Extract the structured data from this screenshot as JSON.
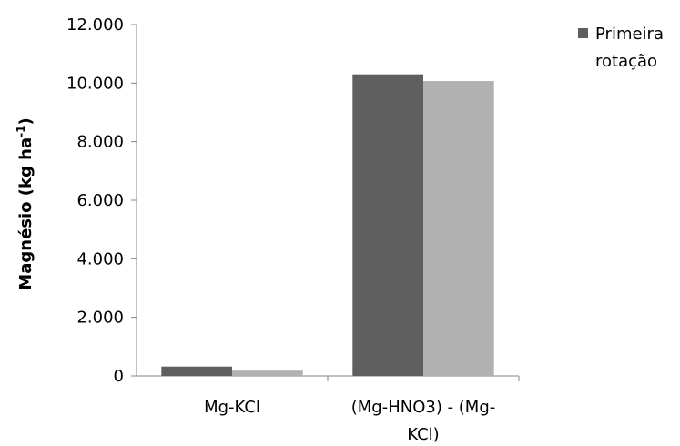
{
  "chart_data": {
    "type": "bar",
    "categories": [
      [
        "Mg-KCl"
      ],
      [
        "(Mg-HNO3) - (Mg-",
        "KCl)"
      ]
    ],
    "series": [
      {
        "name": "Primeira rotação",
        "values": [
          320,
          10300
        ],
        "color": "#5f5f5f"
      },
      {
        "values": [
          180,
          10070
        ],
        "color": "#b1b1b1"
      }
    ],
    "ylim": [
      0,
      12000
    ],
    "yticks": [
      0,
      2000,
      4000,
      6000,
      8000,
      10000,
      12000
    ],
    "ytick_labels": [
      "0",
      "2.000",
      "4.000",
      "6.000",
      "8.000",
      "10.000",
      "12.000"
    ],
    "ylabel": {
      "main": "Magnésio (kg ha",
      "sup": "-1",
      "end": ")"
    },
    "legend": {
      "position": "top-right",
      "lines": [
        "Primeira",
        "rotação"
      ]
    },
    "grid": false
  }
}
